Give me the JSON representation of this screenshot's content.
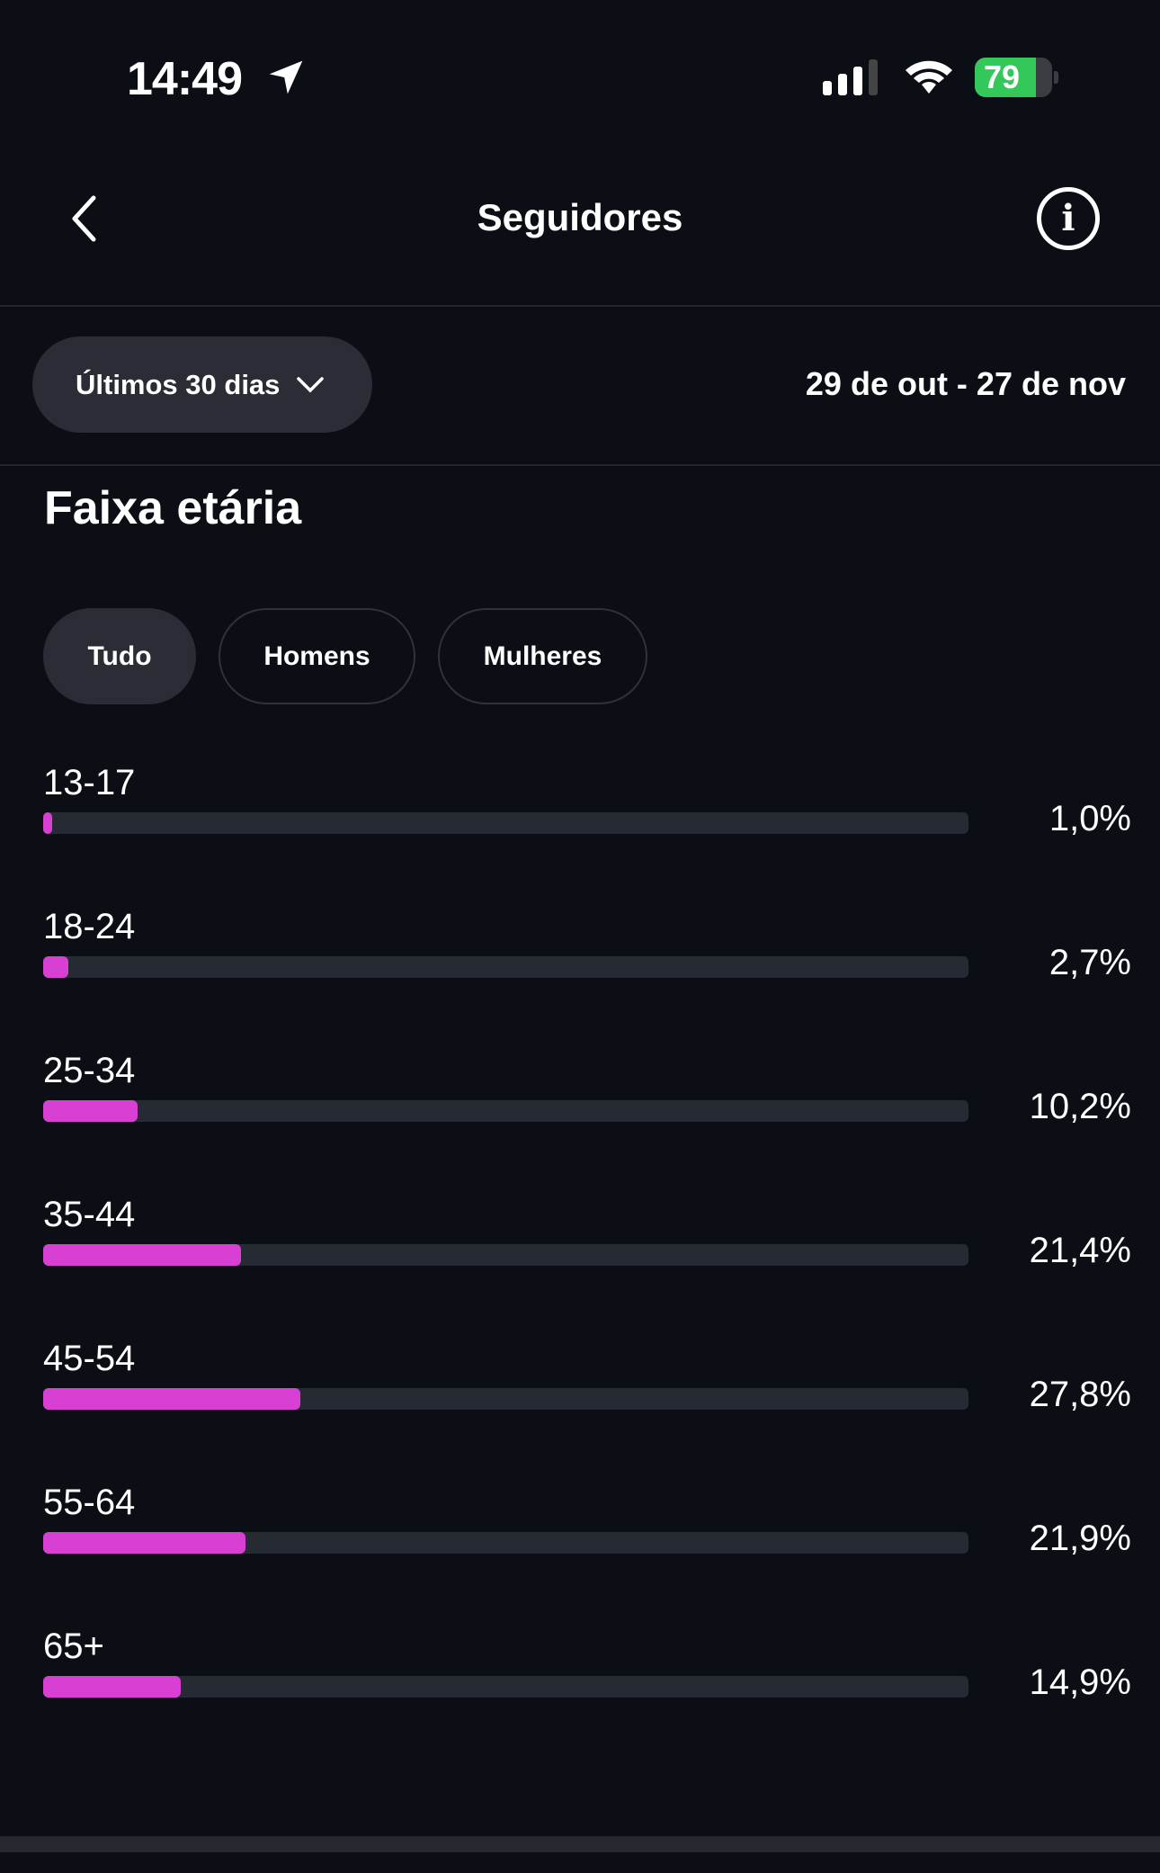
{
  "status_bar": {
    "time": "14:49",
    "battery": "79",
    "battery_level": 79,
    "charging": true
  },
  "nav": {
    "title": "Seguidores",
    "back_icon": "chevron-left-icon",
    "info_icon": "info-icon"
  },
  "filter": {
    "range_label": "Últimos 30 dias",
    "date_range": "29 de out - 27 de nov"
  },
  "section": {
    "title": "Faixa etária"
  },
  "chips": [
    {
      "label": "Tudo",
      "active": true
    },
    {
      "label": "Homens",
      "active": false
    },
    {
      "label": "Mulheres",
      "active": false
    }
  ],
  "colors": {
    "bar": "#d83fd3",
    "track": "#262a33",
    "background": "#0b0e15"
  },
  "age_groups": [
    {
      "label": "13-17",
      "value": 1.0,
      "display": "1,0%"
    },
    {
      "label": "18-24",
      "value": 2.7,
      "display": "2,7%"
    },
    {
      "label": "25-34",
      "value": 10.2,
      "display": "10,2%"
    },
    {
      "label": "35-44",
      "value": 21.4,
      "display": "21,4%"
    },
    {
      "label": "45-54",
      "value": 27.8,
      "display": "27,8%"
    },
    {
      "label": "55-64",
      "value": 21.9,
      "display": "21,9%"
    },
    {
      "label": "65+",
      "value": 14.9,
      "display": "14,9%"
    }
  ]
}
